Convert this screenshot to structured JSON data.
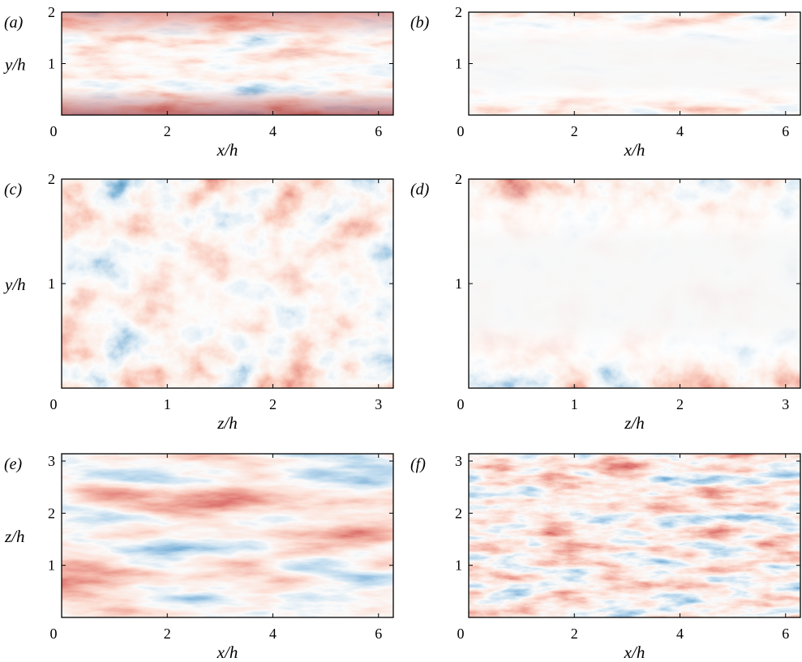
{
  "palette": {
    "red_strong": "#8b0a14",
    "red": "#cf4a3d",
    "red_light": "#f3b9a6",
    "white": "#f8f8f8",
    "blue_light": "#b6d3e8",
    "blue": "#3f7fb8",
    "blue_strong": "#0b3d73"
  },
  "panels": [
    {
      "id": "a",
      "label": "(a)",
      "xlabel": "x/h",
      "ylabel": "y/h",
      "xticks": [
        "0",
        "2",
        "4",
        "6"
      ],
      "yticks": [
        "1",
        "2"
      ],
      "field": "xy-plane-wall-strong"
    },
    {
      "id": "b",
      "label": "(b)",
      "xlabel": "x/h",
      "ylabel": "",
      "xticks": [
        "0",
        "2",
        "4",
        "6"
      ],
      "yticks": [
        "1",
        "2"
      ],
      "field": "xy-plane-near-wall"
    },
    {
      "id": "c",
      "label": "(c)",
      "xlabel": "z/h",
      "ylabel": "y/h",
      "xticks": [
        "0",
        "1",
        "2",
        "3"
      ],
      "yticks": [
        "1",
        "2"
      ],
      "field": "zy-plane-strong"
    },
    {
      "id": "d",
      "label": "(d)",
      "xlabel": "z/h",
      "ylabel": "",
      "xticks": [
        "0",
        "1",
        "2",
        "3"
      ],
      "yticks": [
        "1",
        "2"
      ],
      "field": "zy-plane-near-wall"
    },
    {
      "id": "e",
      "label": "(e)",
      "xlabel": "x/h",
      "ylabel": "z/h",
      "xticks": [
        "0",
        "2",
        "4",
        "6"
      ],
      "yticks": [
        "1",
        "2",
        "3"
      ],
      "field": "xz-plane-large-streaks"
    },
    {
      "id": "f",
      "label": "(f)",
      "xlabel": "x/h",
      "ylabel": "",
      "xticks": [
        "0",
        "2",
        "4",
        "6"
      ],
      "yticks": [
        "1",
        "2",
        "3"
      ],
      "field": "xz-plane-small-streaks"
    }
  ]
}
